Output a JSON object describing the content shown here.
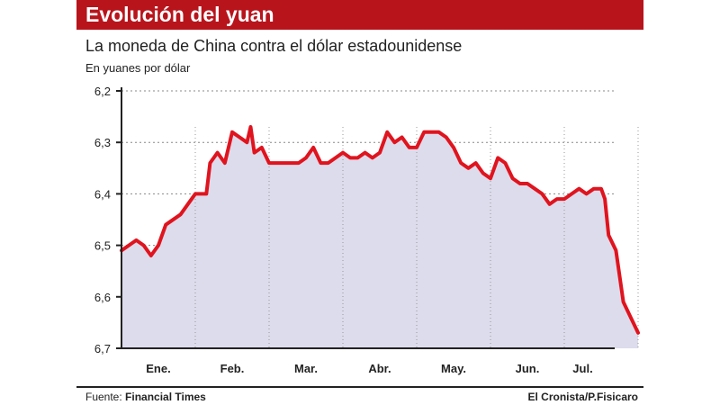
{
  "header": {
    "title": "Evolución del yuan",
    "subtitle": "La moneda de China contra el dólar estadounidense",
    "units": "En yuanes por dólar"
  },
  "footer": {
    "source_label": "Fuente:",
    "source_name": "Financial Times",
    "credit": "El Cronista/P.Fisicaro"
  },
  "colors": {
    "accent": "#b8141c",
    "line": "#e0141e",
    "fill": "#dcdcec"
  },
  "chart_data": {
    "type": "area",
    "title": "Evolución del yuan",
    "subtitle": "La moneda de China contra el dólar estadounidense",
    "ylabel": "En yuanes por dólar",
    "y_inverted": true,
    "ylim": [
      6.2,
      6.7
    ],
    "yticks": [
      "6,2",
      "6,3",
      "6,4",
      "6,5",
      "6,6",
      "6,7"
    ],
    "ytick_values": [
      6.2,
      6.3,
      6.4,
      6.5,
      6.6,
      6.7
    ],
    "months": [
      "Ene.",
      "Feb.",
      "Mar.",
      "Abr.",
      "May.",
      "Jun.",
      "Jul."
    ],
    "grid": true,
    "series": [
      {
        "values": [
          [
            0.0,
            6.51
          ],
          [
            0.1,
            6.5
          ],
          [
            0.2,
            6.49
          ],
          [
            0.3,
            6.5
          ],
          [
            0.4,
            6.52
          ],
          [
            0.5,
            6.5
          ],
          [
            0.6,
            6.46
          ],
          [
            0.8,
            6.44
          ],
          [
            0.9,
            6.42
          ],
          [
            1.0,
            6.4
          ],
          [
            1.15,
            6.4
          ],
          [
            1.2,
            6.34
          ],
          [
            1.3,
            6.32
          ],
          [
            1.4,
            6.34
          ],
          [
            1.5,
            6.28
          ],
          [
            1.6,
            6.29
          ],
          [
            1.7,
            6.3
          ],
          [
            1.75,
            6.27
          ],
          [
            1.8,
            6.32
          ],
          [
            1.9,
            6.31
          ],
          [
            2.0,
            6.34
          ],
          [
            2.2,
            6.34
          ],
          [
            2.4,
            6.34
          ],
          [
            2.5,
            6.33
          ],
          [
            2.6,
            6.31
          ],
          [
            2.7,
            6.34
          ],
          [
            2.8,
            6.34
          ],
          [
            2.9,
            6.33
          ],
          [
            3.0,
            6.32
          ],
          [
            3.1,
            6.33
          ],
          [
            3.2,
            6.33
          ],
          [
            3.3,
            6.32
          ],
          [
            3.4,
            6.33
          ],
          [
            3.5,
            6.32
          ],
          [
            3.6,
            6.28
          ],
          [
            3.7,
            6.3
          ],
          [
            3.8,
            6.29
          ],
          [
            3.9,
            6.31
          ],
          [
            4.0,
            6.31
          ],
          [
            4.1,
            6.28
          ],
          [
            4.2,
            6.28
          ],
          [
            4.3,
            6.28
          ],
          [
            4.4,
            6.29
          ],
          [
            4.5,
            6.31
          ],
          [
            4.6,
            6.34
          ],
          [
            4.7,
            6.35
          ],
          [
            4.8,
            6.34
          ],
          [
            4.9,
            6.36
          ],
          [
            5.0,
            6.37
          ],
          [
            5.1,
            6.33
          ],
          [
            5.2,
            6.34
          ],
          [
            5.3,
            6.37
          ],
          [
            5.4,
            6.38
          ],
          [
            5.5,
            6.38
          ],
          [
            5.6,
            6.39
          ],
          [
            5.7,
            6.4
          ],
          [
            5.8,
            6.42
          ],
          [
            5.9,
            6.41
          ],
          [
            6.0,
            6.41
          ],
          [
            6.1,
            6.4
          ],
          [
            6.2,
            6.39
          ],
          [
            6.3,
            6.4
          ],
          [
            6.4,
            6.39
          ],
          [
            6.5,
            6.39
          ],
          [
            6.55,
            6.41
          ],
          [
            6.6,
            6.48
          ],
          [
            6.7,
            6.51
          ],
          [
            6.8,
            6.61
          ],
          [
            6.9,
            6.64
          ],
          [
            7.0,
            6.67
          ]
        ]
      }
    ],
    "x_note": "x in months since start of January (0 = start of Jan.)"
  }
}
